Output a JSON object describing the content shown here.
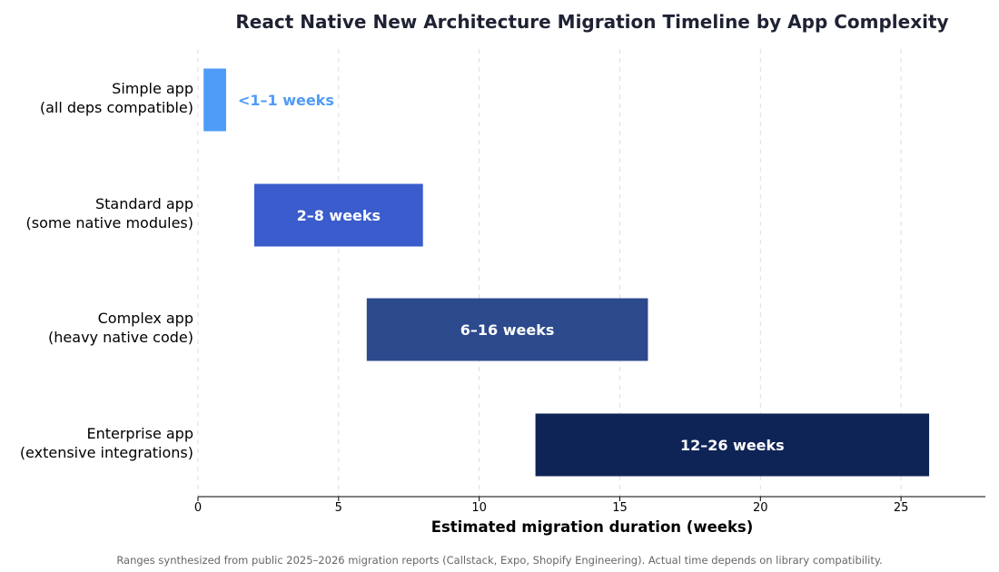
{
  "chart_data": {
    "type": "bar",
    "orientation": "horizontal-range",
    "title": "React Native New Architecture Migration Timeline by App Complexity",
    "xlabel": "Estimated migration duration (weeks)",
    "ylabel": "",
    "xlim": [
      0,
      28
    ],
    "xticks": [
      0,
      5,
      10,
      15,
      20,
      25
    ],
    "grid": "vertical dashed",
    "categories": [
      [
        "Simple app",
        "(all deps compatible)"
      ],
      [
        "Standard app",
        "(some native modules)"
      ],
      [
        "Complex app",
        "(heavy native code)"
      ],
      [
        "Enterprise app",
        "(extensive integrations)"
      ]
    ],
    "ranges": [
      {
        "start": 0.2,
        "end": 1,
        "label": "<1–1 weeks",
        "color": "#4f9bf8",
        "label_placement": "outside"
      },
      {
        "start": 2,
        "end": 8,
        "label": "2–8 weeks",
        "color": "#3a5ccc",
        "label_placement": "inside"
      },
      {
        "start": 6,
        "end": 16,
        "label": "6–16 weeks",
        "color": "#2c4a8c",
        "label_placement": "inside"
      },
      {
        "start": 12,
        "end": 26,
        "label": "12–26 weeks",
        "color": "#0f2456",
        "label_placement": "inside"
      }
    ],
    "footnote": "Ranges synthesized from public 2025–2026 migration reports (Callstack, Expo, Shopify Engineering). Actual time depends on library compatibility."
  }
}
